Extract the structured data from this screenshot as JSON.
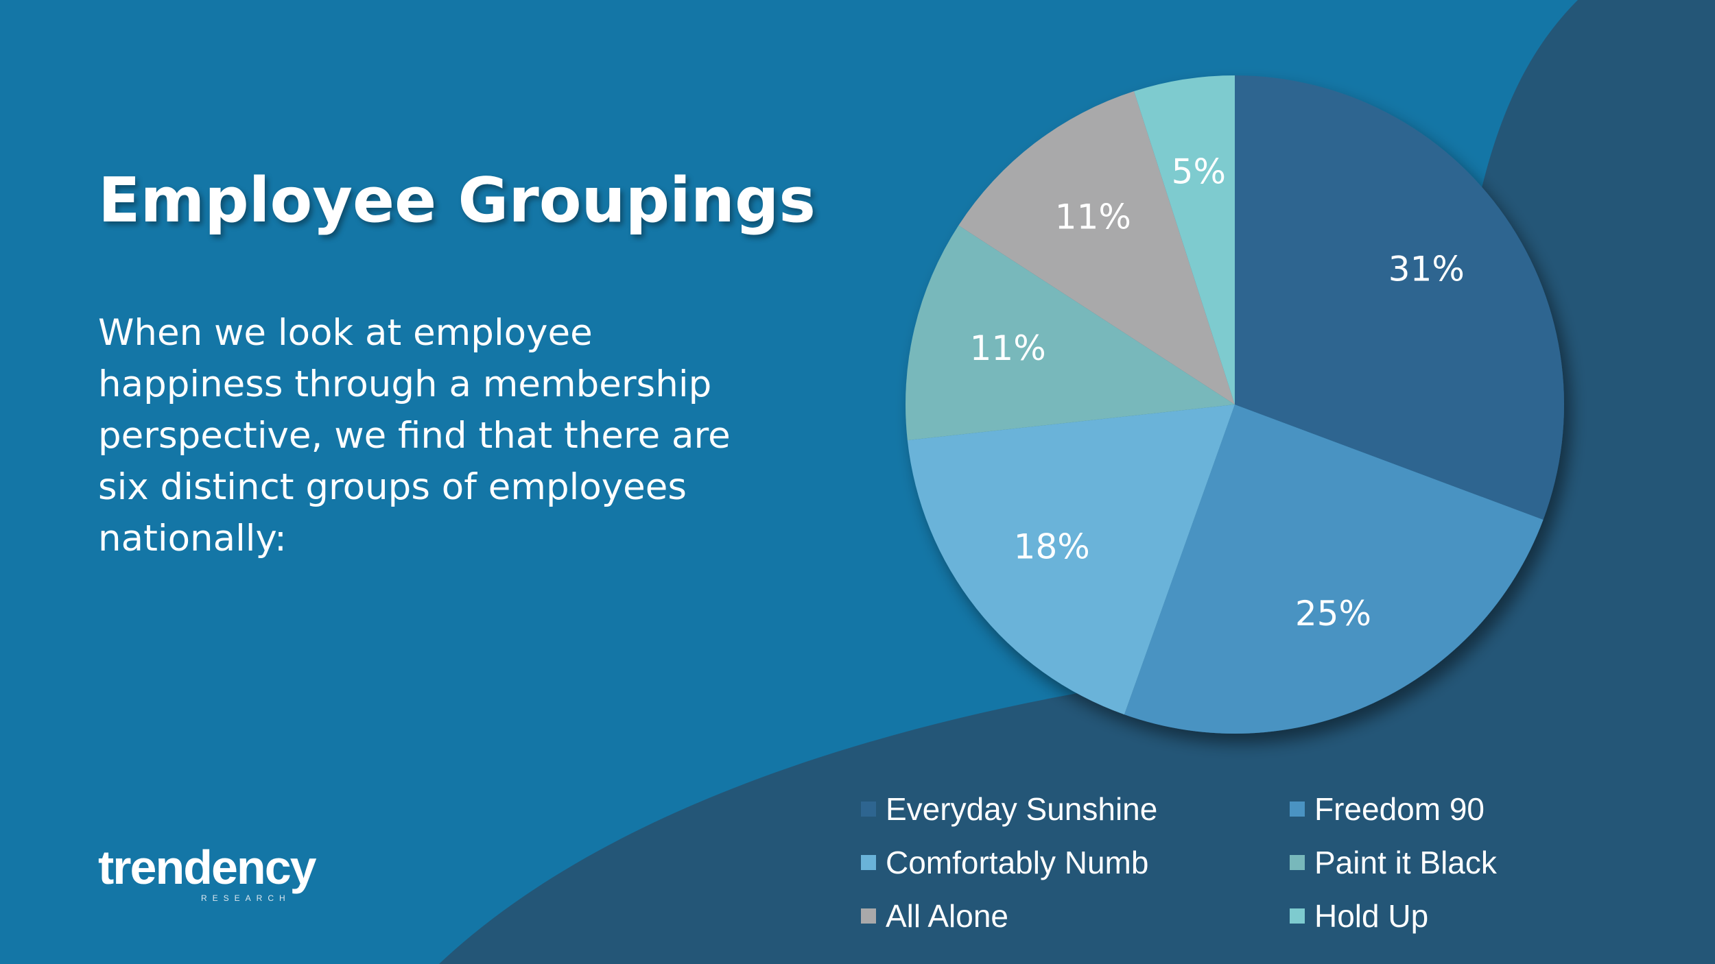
{
  "slide": {
    "title": "Employee Groupings",
    "body": "When we look at employee happiness through a membership perspective, we find that there are six distinct groups of employees nationally:"
  },
  "logo": {
    "name": "trendency",
    "subtitle": "RESEARCH"
  },
  "colors": {
    "background": "#1476a6",
    "accent_shape": "#245677"
  },
  "chart_data": {
    "type": "pie",
    "title": "",
    "start_angle_deg": 0,
    "direction": "clockwise",
    "legend_position": "bottom",
    "slices": [
      {
        "name": "Everyday Sunshine",
        "value": 31,
        "label": "31%",
        "color": "#2e6590"
      },
      {
        "name": "Freedom 90",
        "value": 25,
        "label": "25%",
        "color": "#4a93c2"
      },
      {
        "name": "Comfortably Numb",
        "value": 18,
        "label": "18%",
        "color": "#6ab3d9"
      },
      {
        "name": "Paint it Black",
        "value": 11,
        "label": "11%",
        "color": "#78b8bb"
      },
      {
        "name": "All Alone",
        "value": 11,
        "label": "11%",
        "color": "#a9a9aa"
      },
      {
        "name": "Hold Up",
        "value": 5,
        "label": "5%",
        "color": "#7ecbcf"
      }
    ]
  }
}
